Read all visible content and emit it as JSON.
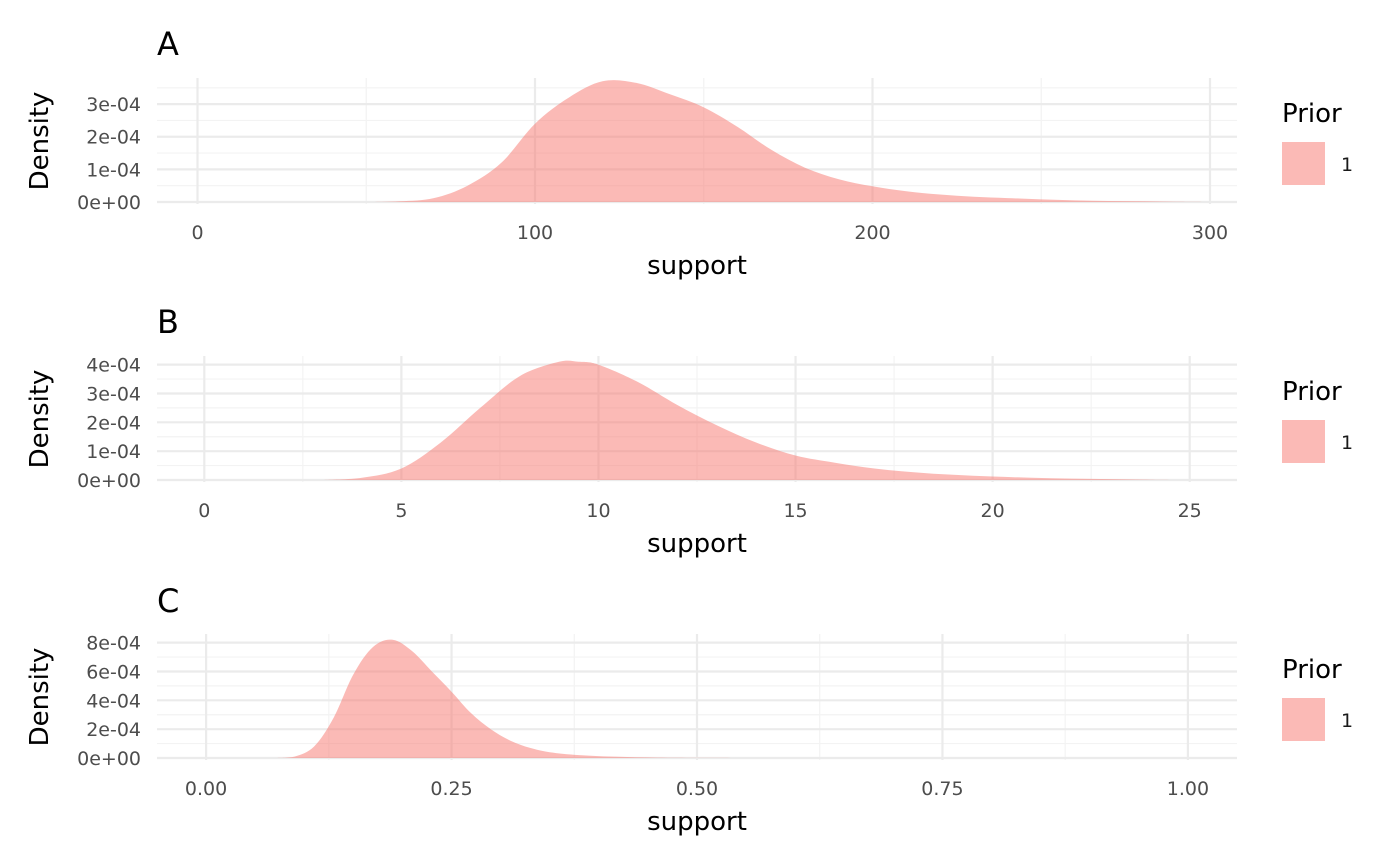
{
  "colors": {
    "fill": "#F8766D",
    "grid_major": "#EBEBEB",
    "grid_minor": "#F3F3F3",
    "tick_text": "#4D4D4D"
  },
  "chart_data": [
    {
      "panel": "A",
      "type": "area",
      "title": "A",
      "xlabel": "support",
      "ylabel": "Density",
      "xlim": [
        -12,
        308
      ],
      "ylim": [
        0,
        0.00038
      ],
      "x_ticks": [
        0,
        100,
        200,
        300
      ],
      "x_tick_labels": [
        "0",
        "100",
        "200",
        "300"
      ],
      "y_ticks": [
        0,
        0.0001,
        0.0002,
        0.0003
      ],
      "y_tick_labels": [
        "0e+00",
        "1e-04",
        "2e-04",
        "3e-04"
      ],
      "legend": {
        "title": "Prior",
        "entries": [
          "1"
        ],
        "position": "right"
      },
      "series": [
        {
          "name": "1",
          "x": [
            50,
            60,
            70,
            80,
            90,
            100,
            110,
            120,
            130,
            140,
            150,
            160,
            170,
            180,
            190,
            200,
            210,
            220,
            230,
            240,
            250,
            260,
            270,
            280,
            290,
            300
          ],
          "y": [
            0,
            2e-06,
            1.2e-05,
            5e-05,
            0.00012,
            0.00024,
            0.00032,
            0.00037,
            0.000365,
            0.00033,
            0.00029,
            0.00023,
            0.00016,
            0.000105,
            7e-05,
            4.8e-05,
            3.3e-05,
            2.3e-05,
            1.6e-05,
            1.2e-05,
            8e-06,
            5e-06,
            3e-06,
            2e-06,
            1e-06,
            0
          ]
        }
      ]
    },
    {
      "panel": "B",
      "type": "area",
      "title": "B",
      "xlabel": "support",
      "ylabel": "Density",
      "xlim": [
        -1.2,
        26.2
      ],
      "ylim": [
        0,
        0.00043
      ],
      "x_ticks": [
        0,
        5,
        10,
        15,
        20,
        25
      ],
      "x_tick_labels": [
        "0",
        "5",
        "10",
        "15",
        "20",
        "25"
      ],
      "y_ticks": [
        0,
        0.0001,
        0.0002,
        0.0003,
        0.0004
      ],
      "y_tick_labels": [
        "0e+00",
        "1e-04",
        "2e-04",
        "3e-04",
        "4e-04"
      ],
      "legend": {
        "title": "Prior",
        "entries": [
          "1"
        ],
        "position": "right"
      },
      "series": [
        {
          "name": "1",
          "x": [
            3,
            4,
            5,
            6,
            7,
            8,
            9,
            9.5,
            10,
            11,
            12,
            13,
            14,
            15,
            16,
            17,
            18,
            19,
            20,
            21,
            22,
            23,
            24,
            25
          ],
          "y": [
            0,
            8e-06,
            4e-05,
            0.00013,
            0.00025,
            0.00036,
            0.00041,
            0.00041,
            0.0004,
            0.00034,
            0.00026,
            0.00019,
            0.00013,
            8.5e-05,
            6e-05,
            4e-05,
            2.7e-05,
            1.8e-05,
            1.2e-05,
            8e-06,
            5e-06,
            3e-06,
            1e-06,
            0
          ]
        }
      ]
    },
    {
      "panel": "C",
      "type": "area",
      "title": "C",
      "xlabel": "support",
      "ylabel": "Density",
      "xlim": [
        -0.05,
        1.05
      ],
      "ylim": [
        0,
        0.00086
      ],
      "x_ticks": [
        0,
        0.25,
        0.5,
        0.75,
        1
      ],
      "x_tick_labels": [
        "0.00",
        "0.25",
        "0.50",
        "0.75",
        "1.00"
      ],
      "y_ticks": [
        0,
        0.0002,
        0.0004,
        0.0006,
        0.0008
      ],
      "y_tick_labels": [
        "0e+00",
        "2e-04",
        "4e-04",
        "6e-04",
        "8e-04"
      ],
      "legend": {
        "title": "Prior",
        "entries": [
          "1"
        ],
        "position": "right"
      },
      "series": [
        {
          "name": "1",
          "x": [
            0.07,
            0.09,
            0.11,
            0.13,
            0.15,
            0.17,
            0.19,
            0.21,
            0.23,
            0.25,
            0.27,
            0.29,
            0.31,
            0.33,
            0.35,
            0.38,
            0.42,
            0.46,
            0.5,
            0.55
          ],
          "y": [
            0,
            1e-05,
            8e-05,
            0.00028,
            0.00058,
            0.00077,
            0.00082,
            0.00074,
            0.0006,
            0.00046,
            0.00031,
            0.0002,
            0.00012,
            7e-05,
            4e-05,
            2e-05,
            8e-06,
            3e-06,
            1e-06,
            0
          ]
        }
      ]
    }
  ]
}
